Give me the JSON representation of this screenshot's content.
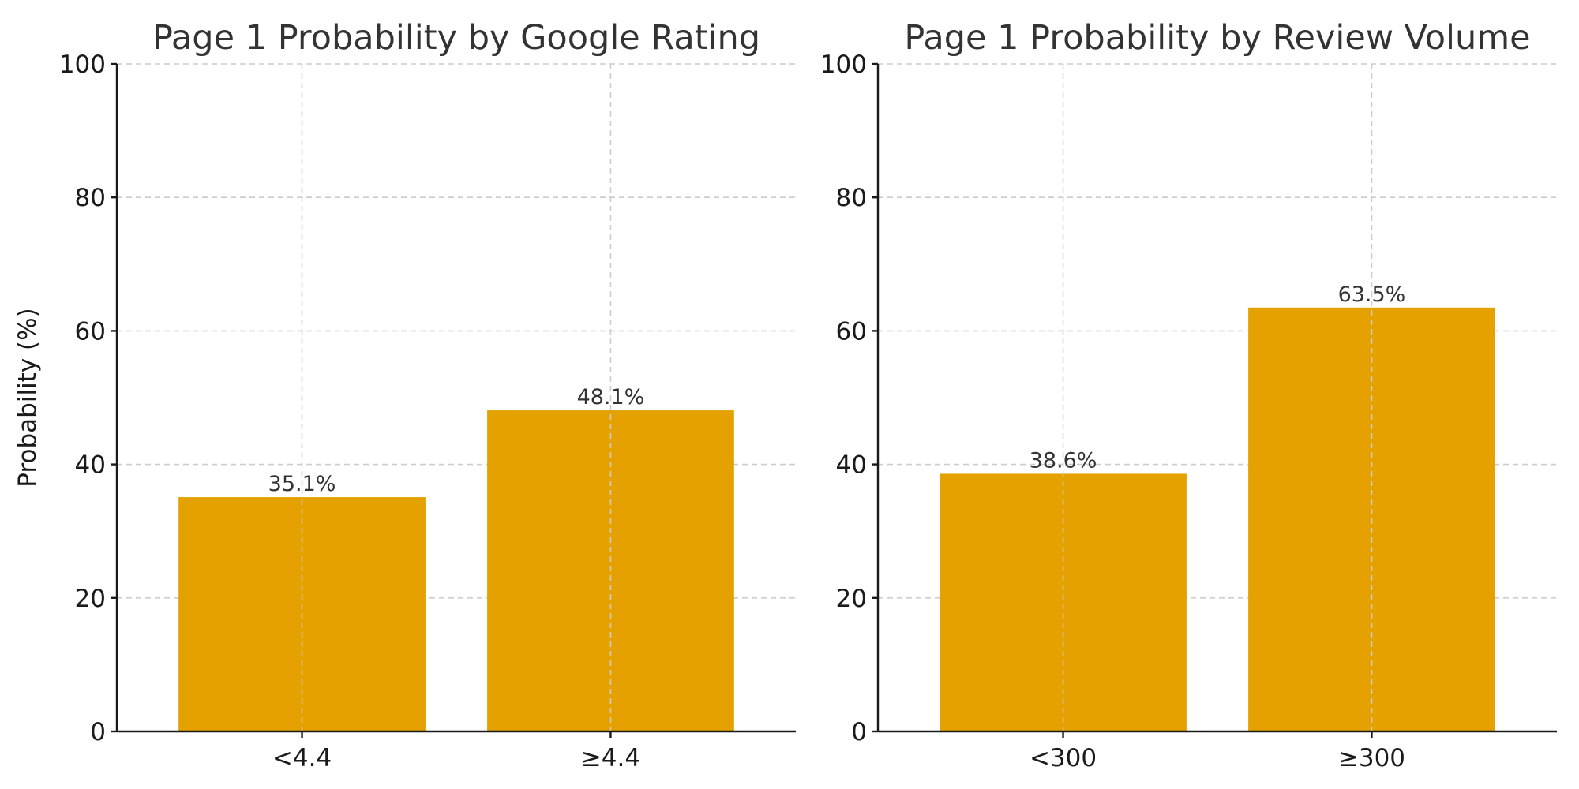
{
  "colors": {
    "bar": "#E4A100",
    "grid": "#cccccc",
    "axis": "#1a1a1a",
    "title": "#333333"
  },
  "chart_data": [
    {
      "type": "bar",
      "title": "Page 1 Probability by Google Rating",
      "xlabel": "",
      "ylabel": "Probability (%)",
      "categories": [
        "<4.4",
        "≥4.4"
      ],
      "values": [
        35.1,
        48.1
      ],
      "data_labels": [
        "35.1%",
        "48.1%"
      ],
      "ylim": [
        0,
        100
      ],
      "yticks": [
        0,
        20,
        40,
        60,
        80,
        100
      ],
      "grid": true
    },
    {
      "type": "bar",
      "title": "Page 1 Probability by Review Volume",
      "xlabel": "",
      "ylabel": "",
      "categories": [
        "<300",
        "≥300"
      ],
      "values": [
        38.6,
        63.5
      ],
      "data_labels": [
        "38.6%",
        "63.5%"
      ],
      "ylim": [
        0,
        100
      ],
      "yticks": [
        0,
        20,
        40,
        60,
        80,
        100
      ],
      "grid": true
    }
  ]
}
